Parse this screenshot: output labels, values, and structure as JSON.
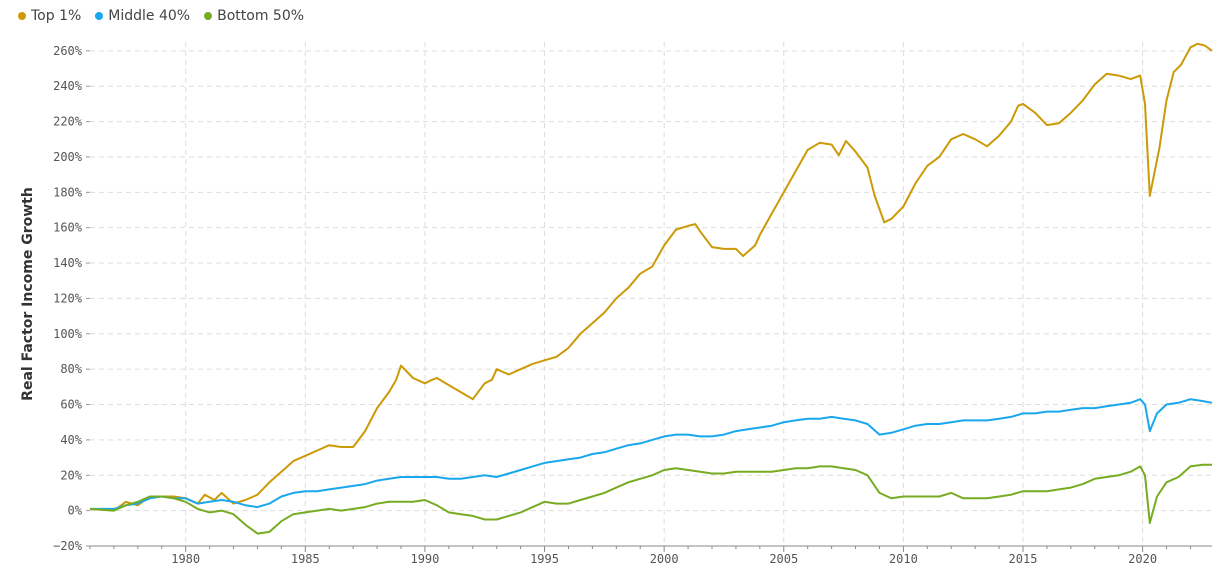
{
  "chart_data": {
    "type": "line",
    "ylabel": "Real Factor Income Growth",
    "xlabel": "",
    "ylim": [
      -20,
      265
    ],
    "xlim": [
      1976,
      2022.9
    ],
    "y_ticks": [
      -20,
      0,
      20,
      40,
      60,
      80,
      100,
      120,
      140,
      160,
      180,
      200,
      220,
      240,
      260
    ],
    "y_tick_labels": [
      "−20%",
      "0%",
      "20%",
      "40%",
      "60%",
      "80%",
      "100%",
      "120%",
      "140%",
      "160%",
      "180%",
      "200%",
      "220%",
      "240%",
      "260%"
    ],
    "x_ticks": [
      1980,
      1985,
      1990,
      1995,
      2000,
      2005,
      2010,
      2015,
      2020
    ],
    "x_tick_labels": [
      "1980",
      "1985",
      "1990",
      "1995",
      "2000",
      "2005",
      "2010",
      "2015",
      "2020"
    ],
    "grid": true,
    "legend_position": "top-left",
    "series": [
      {
        "name": "Top 1%",
        "color": "#cc9a06",
        "points": [
          [
            1976,
            1
          ],
          [
            1977,
            0
          ],
          [
            1977.5,
            5
          ],
          [
            1978,
            3
          ],
          [
            1978.5,
            8
          ],
          [
            1979,
            8
          ],
          [
            1979.5,
            8
          ],
          [
            1980,
            7
          ],
          [
            1980.5,
            4
          ],
          [
            1980.8,
            9
          ],
          [
            1981.2,
            6
          ],
          [
            1981.5,
            10
          ],
          [
            1982,
            4
          ],
          [
            1982.5,
            6
          ],
          [
            1983,
            9
          ],
          [
            1983.5,
            16
          ],
          [
            1984,
            22
          ],
          [
            1984.5,
            28
          ],
          [
            1985,
            31
          ],
          [
            1985.5,
            34
          ],
          [
            1986,
            37
          ],
          [
            1986.5,
            36
          ],
          [
            1987,
            36
          ],
          [
            1987.5,
            45
          ],
          [
            1988,
            58
          ],
          [
            1988.5,
            67
          ],
          [
            1988.8,
            74
          ],
          [
            1989,
            82
          ],
          [
            1989.5,
            75
          ],
          [
            1990,
            72
          ],
          [
            1990.3,
            74
          ],
          [
            1990.5,
            75
          ],
          [
            1991,
            71
          ],
          [
            1991.5,
            67
          ],
          [
            1992,
            63
          ],
          [
            1992.5,
            72
          ],
          [
            1992.8,
            74
          ],
          [
            1993,
            80
          ],
          [
            1993.5,
            77
          ],
          [
            1994,
            80
          ],
          [
            1994.5,
            83
          ],
          [
            1995,
            85
          ],
          [
            1995.5,
            87
          ],
          [
            1996,
            92
          ],
          [
            1996.5,
            100
          ],
          [
            1997,
            106
          ],
          [
            1997.5,
            112
          ],
          [
            1998,
            120
          ],
          [
            1998.5,
            126
          ],
          [
            1999,
            134
          ],
          [
            1999.5,
            138
          ],
          [
            2000,
            150
          ],
          [
            2000.5,
            159
          ],
          [
            2001,
            161
          ],
          [
            2001.3,
            162
          ],
          [
            2001.5,
            158
          ],
          [
            2002,
            149
          ],
          [
            2002.5,
            148
          ],
          [
            2003,
            148
          ],
          [
            2003.3,
            144
          ],
          [
            2003.8,
            150
          ],
          [
            2004,
            156
          ],
          [
            2004.5,
            168
          ],
          [
            2005,
            180
          ],
          [
            2005.5,
            192
          ],
          [
            2006,
            204
          ],
          [
            2006.5,
            208
          ],
          [
            2007,
            207
          ],
          [
            2007.3,
            201
          ],
          [
            2007.6,
            209
          ],
          [
            2008,
            203
          ],
          [
            2008.5,
            194
          ],
          [
            2008.8,
            178
          ],
          [
            2009.2,
            163
          ],
          [
            2009.5,
            165
          ],
          [
            2010,
            172
          ],
          [
            2010.5,
            185
          ],
          [
            2011,
            195
          ],
          [
            2011.5,
            200
          ],
          [
            2012,
            210
          ],
          [
            2012.5,
            213
          ],
          [
            2013,
            210
          ],
          [
            2013.5,
            206
          ],
          [
            2014,
            212
          ],
          [
            2014.5,
            220
          ],
          [
            2014.8,
            229
          ],
          [
            2015,
            230
          ],
          [
            2015.5,
            225
          ],
          [
            2016,
            218
          ],
          [
            2016.5,
            219
          ],
          [
            2017,
            225
          ],
          [
            2017.5,
            232
          ],
          [
            2018,
            241
          ],
          [
            2018.5,
            247
          ],
          [
            2019,
            246
          ],
          [
            2019.5,
            244
          ],
          [
            2019.9,
            246
          ],
          [
            2020.1,
            230
          ],
          [
            2020.3,
            178
          ],
          [
            2020.7,
            205
          ],
          [
            2021,
            232
          ],
          [
            2021.3,
            248
          ],
          [
            2021.6,
            252
          ],
          [
            2022,
            262
          ],
          [
            2022.3,
            264
          ],
          [
            2022.6,
            263
          ],
          [
            2022.9,
            260
          ]
        ]
      },
      {
        "name": "Middle 40%",
        "color": "#1aa7ec",
        "points": [
          [
            1976,
            1
          ],
          [
            1977,
            1
          ],
          [
            1977.5,
            3
          ],
          [
            1978,
            4
          ],
          [
            1978.5,
            7
          ],
          [
            1979,
            8
          ],
          [
            1979.5,
            7
          ],
          [
            1980,
            7
          ],
          [
            1980.5,
            4
          ],
          [
            1981,
            5
          ],
          [
            1981.5,
            6
          ],
          [
            1982,
            5
          ],
          [
            1982.5,
            3
          ],
          [
            1983,
            2
          ],
          [
            1983.5,
            4
          ],
          [
            1984,
            8
          ],
          [
            1984.5,
            10
          ],
          [
            1985,
            11
          ],
          [
            1985.5,
            11
          ],
          [
            1986,
            12
          ],
          [
            1986.5,
            13
          ],
          [
            1987,
            14
          ],
          [
            1987.5,
            15
          ],
          [
            1988,
            17
          ],
          [
            1988.5,
            18
          ],
          [
            1989,
            19
          ],
          [
            1989.5,
            19
          ],
          [
            1990,
            19
          ],
          [
            1990.5,
            19
          ],
          [
            1991,
            18
          ],
          [
            1991.5,
            18
          ],
          [
            1992,
            19
          ],
          [
            1992.5,
            20
          ],
          [
            1993,
            19
          ],
          [
            1993.5,
            21
          ],
          [
            1994,
            23
          ],
          [
            1994.5,
            25
          ],
          [
            1995,
            27
          ],
          [
            1995.5,
            28
          ],
          [
            1996,
            29
          ],
          [
            1996.5,
            30
          ],
          [
            1997,
            32
          ],
          [
            1997.5,
            33
          ],
          [
            1998,
            35
          ],
          [
            1998.5,
            37
          ],
          [
            1999,
            38
          ],
          [
            1999.5,
            40
          ],
          [
            2000,
            42
          ],
          [
            2000.5,
            43
          ],
          [
            2001,
            43
          ],
          [
            2001.5,
            42
          ],
          [
            2002,
            42
          ],
          [
            2002.5,
            43
          ],
          [
            2003,
            45
          ],
          [
            2003.5,
            46
          ],
          [
            2004,
            47
          ],
          [
            2004.5,
            48
          ],
          [
            2005,
            50
          ],
          [
            2005.5,
            51
          ],
          [
            2006,
            52
          ],
          [
            2006.5,
            52
          ],
          [
            2007,
            53
          ],
          [
            2007.5,
            52
          ],
          [
            2008,
            51
          ],
          [
            2008.5,
            49
          ],
          [
            2009,
            43
          ],
          [
            2009.5,
            44
          ],
          [
            2010,
            46
          ],
          [
            2010.5,
            48
          ],
          [
            2011,
            49
          ],
          [
            2011.5,
            49
          ],
          [
            2012,
            50
          ],
          [
            2012.5,
            51
          ],
          [
            2013,
            51
          ],
          [
            2013.5,
            51
          ],
          [
            2014,
            52
          ],
          [
            2014.5,
            53
          ],
          [
            2015,
            55
          ],
          [
            2015.5,
            55
          ],
          [
            2016,
            56
          ],
          [
            2016.5,
            56
          ],
          [
            2017,
            57
          ],
          [
            2017.5,
            58
          ],
          [
            2018,
            58
          ],
          [
            2018.5,
            59
          ],
          [
            2019,
            60
          ],
          [
            2019.5,
            61
          ],
          [
            2019.9,
            63
          ],
          [
            2020.1,
            60
          ],
          [
            2020.3,
            45
          ],
          [
            2020.6,
            55
          ],
          [
            2021,
            60
          ],
          [
            2021.5,
            61
          ],
          [
            2022,
            63
          ],
          [
            2022.5,
            62
          ],
          [
            2022.9,
            61
          ]
        ]
      },
      {
        "name": "Bottom 50%",
        "color": "#77ac22",
        "points": [
          [
            1976,
            1
          ],
          [
            1977,
            0
          ],
          [
            1977.5,
            3
          ],
          [
            1978,
            5
          ],
          [
            1978.5,
            8
          ],
          [
            1979,
            8
          ],
          [
            1979.5,
            7
          ],
          [
            1980,
            5
          ],
          [
            1980.5,
            1
          ],
          [
            1981,
            -1
          ],
          [
            1981.5,
            0
          ],
          [
            1982,
            -2
          ],
          [
            1982.5,
            -8
          ],
          [
            1983,
            -13
          ],
          [
            1983.5,
            -12
          ],
          [
            1984,
            -6
          ],
          [
            1984.5,
            -2
          ],
          [
            1985,
            -1
          ],
          [
            1985.5,
            0
          ],
          [
            1986,
            1
          ],
          [
            1986.5,
            0
          ],
          [
            1987,
            1
          ],
          [
            1987.5,
            2
          ],
          [
            1988,
            4
          ],
          [
            1988.5,
            5
          ],
          [
            1989,
            5
          ],
          [
            1989.5,
            5
          ],
          [
            1990,
            6
          ],
          [
            1990.5,
            3
          ],
          [
            1991,
            -1
          ],
          [
            1991.5,
            -2
          ],
          [
            1992,
            -3
          ],
          [
            1992.5,
            -5
          ],
          [
            1993,
            -5
          ],
          [
            1993.5,
            -3
          ],
          [
            1994,
            -1
          ],
          [
            1994.5,
            2
          ],
          [
            1995,
            5
          ],
          [
            1995.5,
            4
          ],
          [
            1996,
            4
          ],
          [
            1996.5,
            6
          ],
          [
            1997,
            8
          ],
          [
            1997.5,
            10
          ],
          [
            1998,
            13
          ],
          [
            1998.5,
            16
          ],
          [
            1999,
            18
          ],
          [
            1999.5,
            20
          ],
          [
            2000,
            23
          ],
          [
            2000.5,
            24
          ],
          [
            2001,
            23
          ],
          [
            2001.5,
            22
          ],
          [
            2002,
            21
          ],
          [
            2002.5,
            21
          ],
          [
            2003,
            22
          ],
          [
            2003.5,
            22
          ],
          [
            2004,
            22
          ],
          [
            2004.5,
            22
          ],
          [
            2005,
            23
          ],
          [
            2005.5,
            24
          ],
          [
            2006,
            24
          ],
          [
            2006.5,
            25
          ],
          [
            2007,
            25
          ],
          [
            2007.5,
            24
          ],
          [
            2008,
            23
          ],
          [
            2008.5,
            20
          ],
          [
            2009,
            10
          ],
          [
            2009.5,
            7
          ],
          [
            2010,
            8
          ],
          [
            2010.5,
            8
          ],
          [
            2011,
            8
          ],
          [
            2011.5,
            8
          ],
          [
            2012,
            10
          ],
          [
            2012.5,
            7
          ],
          [
            2013,
            7
          ],
          [
            2013.5,
            7
          ],
          [
            2014,
            8
          ],
          [
            2014.5,
            9
          ],
          [
            2015,
            11
          ],
          [
            2015.5,
            11
          ],
          [
            2016,
            11
          ],
          [
            2016.5,
            12
          ],
          [
            2017,
            13
          ],
          [
            2017.5,
            15
          ],
          [
            2018,
            18
          ],
          [
            2018.5,
            19
          ],
          [
            2019,
            20
          ],
          [
            2019.5,
            22
          ],
          [
            2019.9,
            25
          ],
          [
            2020.1,
            20
          ],
          [
            2020.3,
            -7
          ],
          [
            2020.6,
            8
          ],
          [
            2021,
            16
          ],
          [
            2021.5,
            19
          ],
          [
            2022,
            25
          ],
          [
            2022.5,
            26
          ],
          [
            2022.9,
            26
          ]
        ]
      }
    ]
  }
}
